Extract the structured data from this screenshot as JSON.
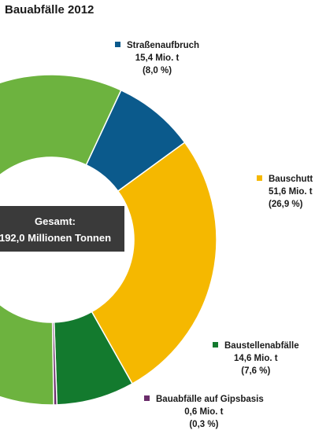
{
  "title": "Bauabfälle 2012",
  "center": {
    "line1": "Gesamt:",
    "line2": "192,0 Millionen Tonnen"
  },
  "chart_data": {
    "type": "pie",
    "donut": true,
    "total": "192,0 Millionen Tonnen",
    "slices": [
      {
        "name": "Straßenaufbruch",
        "amount": "15,4 Mio. t",
        "share": "(8,0 %)",
        "value": 15.4,
        "percent": 8.0,
        "color": "#0b5a8c"
      },
      {
        "name": "Bauschutt",
        "amount": "51,6 Mio. t",
        "share": "(26,9 %)",
        "value": 51.6,
        "percent": 26.9,
        "color": "#f5b800"
      },
      {
        "name": "Baustellenabfälle",
        "amount": "14,6 Mio. t",
        "share": "(7,6 %)",
        "value": 14.6,
        "percent": 7.6,
        "color": "#137a2e"
      },
      {
        "name": "Bauabfälle auf Gipsbasis",
        "amount": "0,6 Mio. t",
        "share": "(0,3 %)",
        "value": 0.6,
        "percent": 0.3,
        "color": "#6b2d6b"
      },
      {
        "name": "",
        "amount": "",
        "share": "",
        "value": 109.8,
        "percent": 57.2,
        "color": "#6db33f"
      }
    ]
  }
}
